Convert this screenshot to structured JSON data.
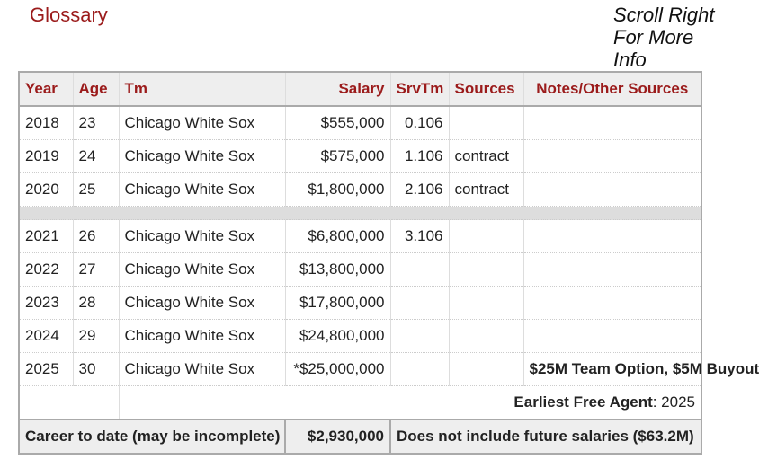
{
  "header": {
    "glossary": "Glossary",
    "scroll": "Scroll Right For More Info"
  },
  "columns": [
    "Year",
    "Age",
    "Tm",
    "Salary",
    "SrvTm",
    "Sources",
    "Notes/Other Sources"
  ],
  "rows": [
    {
      "year": "2018",
      "age": "23",
      "tm": "Chicago White Sox",
      "salary": "$555,000",
      "srv": "0.106",
      "src": "",
      "notes": ""
    },
    {
      "year": "2019",
      "age": "24",
      "tm": "Chicago White Sox",
      "salary": "$575,000",
      "srv": "1.106",
      "src": "contract",
      "notes": ""
    },
    {
      "year": "2020",
      "age": "25",
      "tm": "Chicago White Sox",
      "salary": "$1,800,000",
      "srv": "2.106",
      "src": "contract",
      "notes": ""
    },
    {
      "year": "2021",
      "age": "26",
      "tm": "Chicago White Sox",
      "salary": "$6,800,000",
      "srv": "3.106",
      "src": "",
      "notes": ""
    },
    {
      "year": "2022",
      "age": "27",
      "tm": "Chicago White Sox",
      "salary": "$13,800,000",
      "srv": "",
      "src": "",
      "notes": ""
    },
    {
      "year": "2023",
      "age": "28",
      "tm": "Chicago White Sox",
      "salary": "$17,800,000",
      "srv": "",
      "src": "",
      "notes": ""
    },
    {
      "year": "2024",
      "age": "29",
      "tm": "Chicago White Sox",
      "salary": "$24,800,000",
      "srv": "",
      "src": "",
      "notes": ""
    },
    {
      "year": "2025",
      "age": "30",
      "tm": "Chicago White Sox",
      "salary": "*$25,000,000",
      "srv": "",
      "src": "",
      "notes": "$25M Team Option, $5M Buyout"
    }
  ],
  "free_agent": {
    "label": "Earliest Free Agent",
    "value": ": 2025"
  },
  "footer": {
    "label": "Career to date (may be incomplete)",
    "total": "$2,930,000",
    "note": "Does not include future salaries ($63.2M)"
  }
}
